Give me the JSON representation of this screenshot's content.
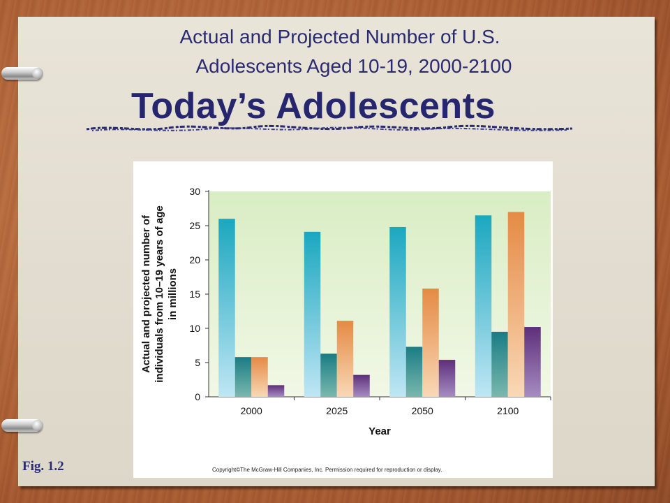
{
  "slide": {
    "subtitle_line1": "Actual and Projected Number of U.S.",
    "subtitle_line2": "Adolescents Aged 10-19, 2000-2100",
    "title": "Today’s Adolescents",
    "figure_label": "Fig. 1.2",
    "copyright": "Copyright©The McGraw-Hill Companies, Inc.  Permission required for reproduction or display."
  },
  "chart_data": {
    "type": "bar",
    "categories": [
      "2000",
      "2025",
      "2050",
      "2100"
    ],
    "series": [
      {
        "values": [
          26.0,
          24.1,
          24.8,
          26.5
        ]
      },
      {
        "values": [
          5.8,
          6.3,
          7.3,
          9.5
        ]
      },
      {
        "values": [
          5.8,
          11.1,
          15.8,
          27.0
        ]
      },
      {
        "values": [
          1.7,
          3.2,
          5.4,
          10.2
        ]
      }
    ],
    "xlabel": "Year",
    "ylabel_lines": [
      "Actual and projected number of",
      "individuals from 10–19 years of age",
      "in millions"
    ],
    "ylim": [
      0,
      30
    ],
    "yticks": [
      0,
      5,
      10,
      15,
      20,
      25,
      30
    ],
    "grid": false,
    "legend": "none",
    "colors": {
      "series1": {
        "top": "#1ba7bf",
        "bottom": "#bfe6f4"
      },
      "series2": {
        "top": "#1a7c84",
        "bottom": "#7ab8ae"
      },
      "series3": {
        "top": "#e58a45",
        "bottom": "#f9d8b6"
      },
      "series4": {
        "top": "#5e2f7a",
        "bottom": "#a68cc2"
      },
      "plot_background_top": "#d9edc4",
      "plot_background_bottom": "#f1f8e6"
    }
  }
}
